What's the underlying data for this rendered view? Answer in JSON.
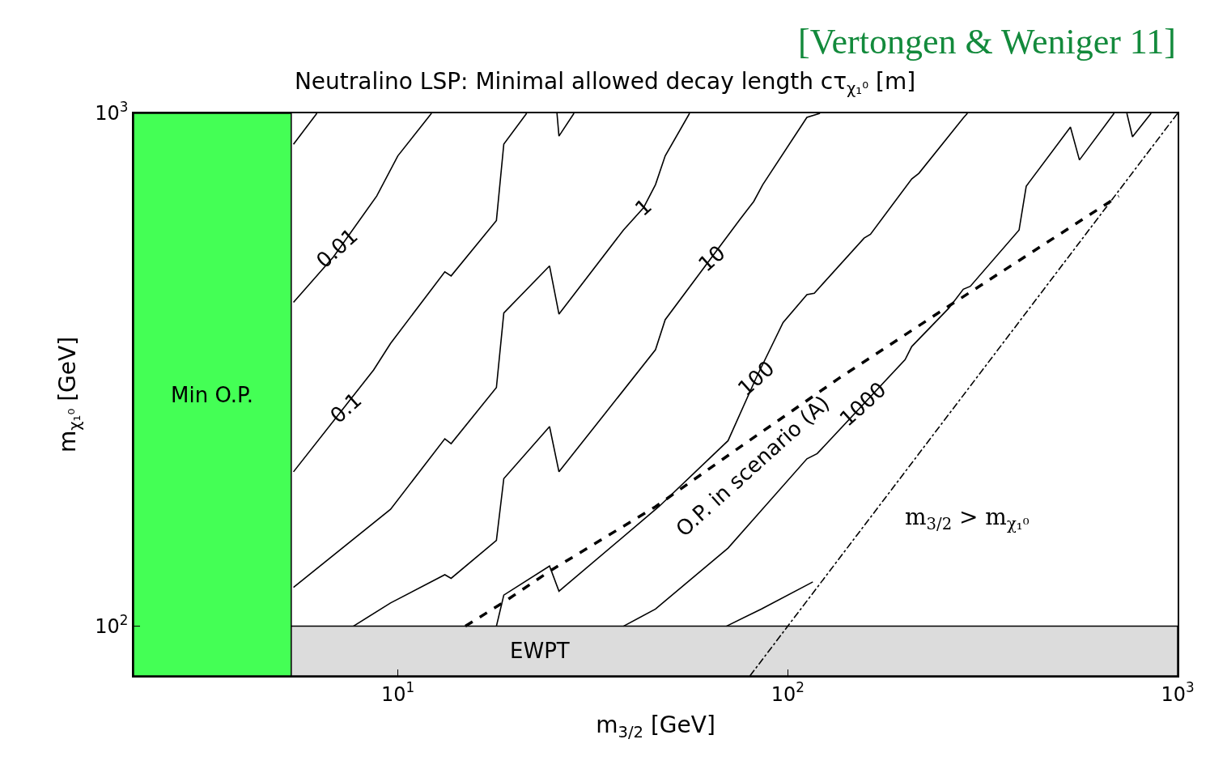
{
  "chart_data": {
    "type": "line",
    "title": "Neutralino LSP: Minimal allowed decay length cτ$_{χ₁⁰}$ [m]",
    "xlabel": "m$_{3/2}$ [GeV]",
    "ylabel": "m$_{χ₁⁰}$ [GeV]",
    "log": "xy",
    "xlim": [
      2.1,
      1000
    ],
    "ylim": [
      80,
      1000
    ],
    "xticks": [
      {
        "value": 10,
        "label": "10$^{1}$"
      },
      {
        "value": 100,
        "label": "10$^{2}$"
      },
      {
        "value": 1000,
        "label": "10$^{3}$"
      }
    ],
    "yticks": [
      {
        "value": 100,
        "label": "10$^{2}$"
      },
      {
        "value": 1000,
        "label": "10$^{3}$"
      }
    ],
    "grid": false,
    "marker": "none",
    "series": [
      {
        "color": "#000000",
        "line_style": "solid",
        "x": [
          5.4,
          6.2
        ],
        "values": [
          870,
          1000
        ]
      },
      {
        "color": "#000000",
        "line_style": "solid",
        "x": [
          5.4,
          6.84,
          8.83,
          10,
          12.2
        ],
        "values": [
          428,
          525,
          690,
          826,
          1000
        ]
      },
      {
        "color": "#000000",
        "line_style": "solid",
        "x": [
          5.4,
          8.67,
          9.58,
          13.2,
          13.7,
          17.9,
          18.7,
          21.4,
          null,
          25.6,
          25.9,
          28.3
        ],
        "values": [
          200,
          316,
          356,
          491,
          482,
          618,
          871,
          1000,
          null,
          1000,
          903,
          1000
        ]
      },
      {
        "color": "#000000",
        "line_style": "solid",
        "x": [
          5.4,
          9.58,
          13.2,
          13.7,
          17.9,
          18.7,
          24.5,
          25.9,
          37.9,
          42.7,
          45.8,
          48.5,
          56.0
        ],
        "values": [
          119,
          169,
          232,
          227,
          292,
          408,
          504,
          406,
          592,
          655,
          726,
          826,
          1000
        ]
      },
      {
        "color": "#000000",
        "line_style": "solid",
        "x": [
          7.69,
          9.58,
          13.2,
          13.7,
          17.9,
          18.7,
          24.5,
          25.9,
          45.8,
          48.5,
          75.5,
          81.8,
          86.3,
          112,
          121
        ],
        "values": [
          100,
          111,
          126,
          124,
          147,
          194,
          245,
          200,
          346,
          396,
          622,
          673,
          726,
          982,
          1000
        ]
      },
      {
        "color": "#000000",
        "line_style": "solid",
        "x": [
          17.9,
          18.7,
          24.5,
          25.9,
          46.7,
          70.3,
          83,
          97.3,
          112,
          117,
          157,
          163,
          208,
          217,
          282,
          289
        ],
        "values": [
          100,
          115,
          131,
          117,
          171,
          230,
          305,
          391,
          443,
          446,
          571,
          581,
          745,
          764,
          979,
          1000
        ]
      },
      {
        "color": "#000000",
        "line_style": "solid",
        "x": [
          37.9,
          45.8,
          70.3,
          85.5,
          112,
          119,
          200,
          208,
          259,
          282,
          294,
          392,
          409,
          531,
          560,
          687,
          null,
          741,
          766,
          855
        ],
        "values": [
          100,
          108,
          142,
          168,
          212,
          217,
          331,
          351,
          417,
          454,
          460,
          592,
          721,
          940,
          811,
          1000,
          null,
          1000,
          900,
          1000
        ]
      },
      {
        "color": "#000000",
        "line_style": "solid",
        "x": [
          69.6,
          85.5,
          116
        ],
        "values": [
          100,
          108,
          122
        ]
      },
      {
        "color": "#000000",
        "line_style": "dashed",
        "x": [
          14.9,
          18.9,
          24.5,
          45.8,
          74.5,
          135,
          259,
          706
        ],
        "values": [
          100,
          112,
          128,
          171,
          222,
          304,
          421,
          690
        ]
      },
      {
        "color": "#000000",
        "line_style": "dashdot",
        "x": [
          80,
          1000
        ],
        "values": [
          80,
          1000
        ]
      }
    ],
    "bands": [
      {
        "axis": "y",
        "from": 80,
        "to": 100,
        "label": "EWPT",
        "color": "#dcdcdc"
      },
      {
        "axis": "x",
        "from": 2.1,
        "to": 5.33,
        "label": "Min O.P.",
        "color": "#44ff55"
      }
    ],
    "annotations": [
      {
        "text": "0.01",
        "x": 6.96,
        "y": 546
      },
      {
        "text": "0.1",
        "x": 7.35,
        "y": 266
      },
      {
        "text": "1",
        "x": 42.7,
        "y": 655
      },
      {
        "text": "10",
        "x": 64,
        "y": 521
      },
      {
        "text": "100",
        "x": 83,
        "y": 305
      },
      {
        "text": "1000",
        "x": 156,
        "y": 271
      },
      {
        "text": "O.P. in scenario (A)",
        "x": 74.5,
        "y": 222
      },
      "m$_{3/2}$ > m$_{χ₁⁰}$",
      "[Vertongen & Weniger 11]"
    ]
  }
}
